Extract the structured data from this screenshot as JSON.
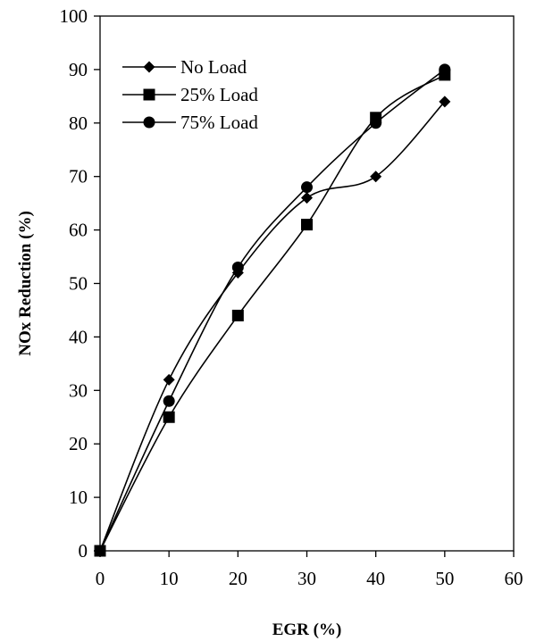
{
  "chart_data": {
    "type": "line",
    "title": "",
    "xlabel": "EGR (%)",
    "ylabel": "NOx Reduction (%)",
    "xlim": [
      0,
      60
    ],
    "ylim": [
      0,
      100
    ],
    "x_ticks": [
      0,
      10,
      20,
      30,
      40,
      50,
      60
    ],
    "y_ticks": [
      0,
      10,
      20,
      30,
      40,
      50,
      60,
      70,
      80,
      90,
      100
    ],
    "grid": false,
    "legend_position": "top-left",
    "line_color": "#000000",
    "smooth": true,
    "series": [
      {
        "name": "No Load",
        "marker": "diamond",
        "x": [
          0,
          10,
          20,
          30,
          40,
          50
        ],
        "y": [
          0,
          32,
          52,
          66,
          70,
          84
        ]
      },
      {
        "name": "25% Load",
        "marker": "square",
        "x": [
          0,
          10,
          20,
          30,
          40,
          50
        ],
        "y": [
          0,
          25,
          44,
          61,
          81,
          89
        ]
      },
      {
        "name": "75% Load",
        "marker": "circle",
        "x": [
          0,
          10,
          20,
          30,
          40,
          50
        ],
        "y": [
          0,
          28,
          53,
          68,
          80,
          90
        ]
      }
    ]
  }
}
